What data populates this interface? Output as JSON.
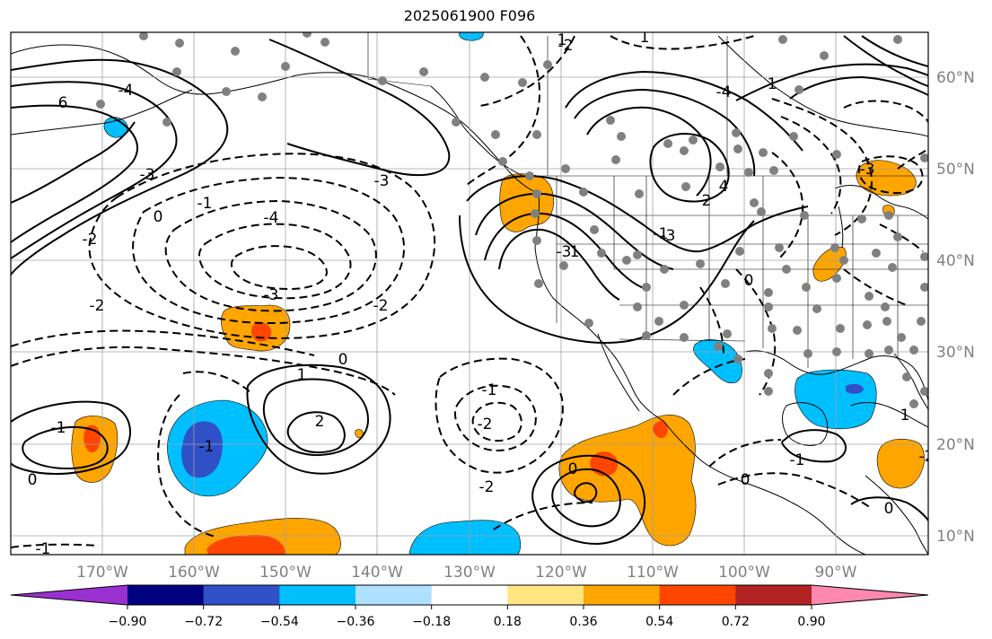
{
  "title": "2025061900 F096",
  "map": {
    "lat_labels": [
      "60°N",
      "50°N",
      "40°N",
      "30°N",
      "20°N",
      "10°N"
    ],
    "lon_labels": [
      "170°W",
      "160°W",
      "150°W",
      "140°W",
      "130°W",
      "120°W",
      "110°W",
      "100°W",
      "90°W"
    ],
    "contour_labels": [
      "-1",
      "1",
      "-2",
      "6",
      "-4",
      "-3",
      "0",
      "-1",
      "-2",
      "-2",
      "1",
      "-4",
      "-3",
      "-2",
      "-3",
      "0",
      "0",
      "-1",
      "1",
      "2",
      "-1",
      "-2",
      "-1",
      "0",
      "1",
      "-2",
      "1",
      "0",
      "-1",
      "0",
      "0",
      "-1",
      "4",
      "-2",
      "-3",
      "-3",
      "-4",
      "-3",
      "-2",
      "1"
    ]
  },
  "colorbar": {
    "ticks": [
      "−0.90",
      "−0.72",
      "−0.54",
      "−0.36",
      "−0.18",
      "0.18",
      "0.36",
      "0.54",
      "0.72",
      "0.90"
    ],
    "colors": [
      "#9b30d0",
      "#000080",
      "#3050c8",
      "#00bfff",
      "#b0e0ff",
      "#ffffff",
      "#ffe680",
      "#ffa500",
      "#ff4500",
      "#b22222",
      "#ff88b0"
    ]
  },
  "colors": {
    "land_outline": "#000000",
    "grid": "#a0a0a0",
    "station_dot": "#808080",
    "axis_label": "#808080"
  }
}
